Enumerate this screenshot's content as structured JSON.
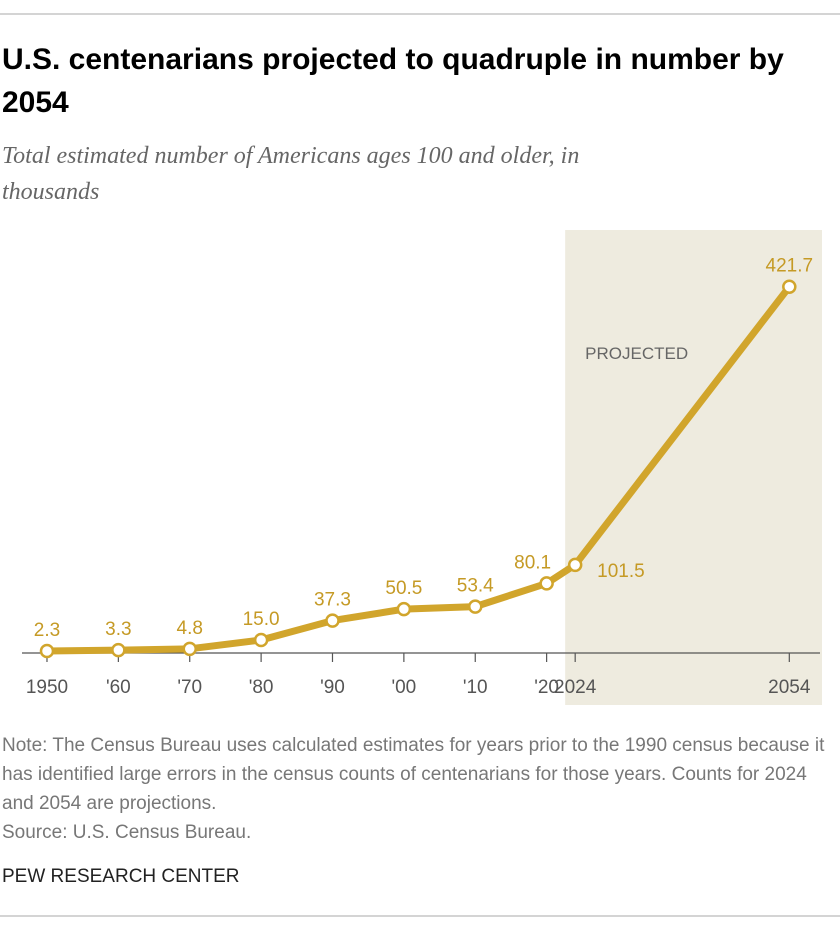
{
  "chart_data": {
    "type": "line",
    "title": "U.S. centenarians projected to quadruple in number by 2054",
    "subtitle": "Total estimated number of Americans ages 100 and older, in thousands",
    "x": [
      1950,
      1960,
      1970,
      1980,
      1990,
      2000,
      2010,
      2020,
      2024,
      2054
    ],
    "series": [
      {
        "color": "#d1a52c",
        "values": [
          2.3,
          3.3,
          4.8,
          15.0,
          37.3,
          50.5,
          53.4,
          80.1,
          101.5,
          421.7
        ],
        "value_labels": [
          "2.3",
          "3.3",
          "4.8",
          "15.0",
          "37.3",
          "50.5",
          "53.4",
          "80.1",
          "101.5",
          "421.7"
        ]
      }
    ],
    "xlim": [
      1946.5,
      2058.3
    ],
    "xticks": [
      {
        "value": 1950,
        "label": "1950"
      },
      {
        "value": 1960,
        "label": "'60"
      },
      {
        "value": 1970,
        "label": "'70"
      },
      {
        "value": 1980,
        "label": "'80"
      },
      {
        "value": 1990,
        "label": "'90"
      },
      {
        "value": 2000,
        "label": "'00"
      },
      {
        "value": 2010,
        "label": "'10"
      },
      {
        "value": 2020,
        "label": "'20"
      },
      {
        "value": 2024,
        "label": "2024"
      },
      {
        "value": 2054,
        "label": "2054"
      }
    ],
    "ylim": [
      0,
      487
    ],
    "annotations": [
      {
        "text": "PROJECTED"
      }
    ],
    "note": "Note: The Census Bureau uses calculated estimates for years prior to the 1990 census because it has identified large errors in the census counts of centenarians for those years. Counts for 2024 and 2054 are projections.",
    "source": "Source: U.S. Census Bureau.",
    "credit": "PEW RESEARCH CENTER"
  }
}
